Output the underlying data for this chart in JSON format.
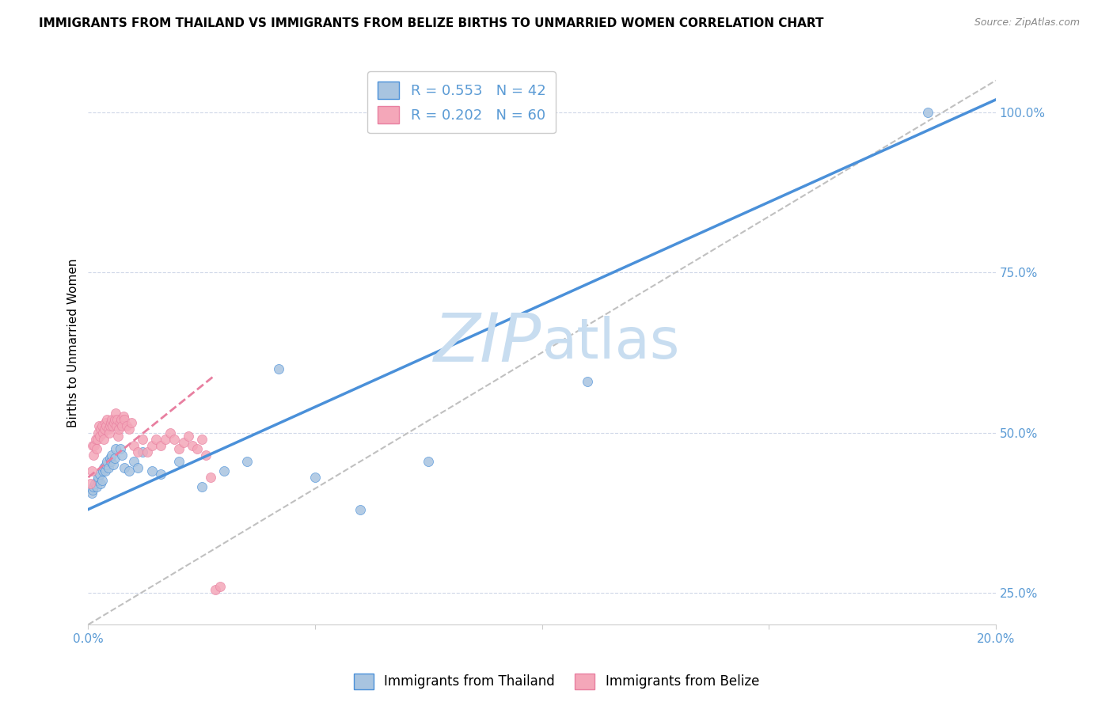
{
  "title": "IMMIGRANTS FROM THAILAND VS IMMIGRANTS FROM BELIZE BIRTHS TO UNMARRIED WOMEN CORRELATION CHART",
  "source": "Source: ZipAtlas.com",
  "ylabel_left": "Births to Unmarried Women",
  "legend_labels": [
    "Immigrants from Thailand",
    "Immigrants from Belize"
  ],
  "r_thailand": 0.553,
  "n_thailand": 42,
  "r_belize": 0.202,
  "n_belize": 60,
  "color_thailand": "#a8c4e0",
  "color_belize": "#f4a7b9",
  "color_regression_thailand": "#4a90d9",
  "color_regression_belize": "#e87fa0",
  "color_right_axis": "#5b9bd5",
  "xlim": [
    0.0,
    0.2
  ],
  "ylim": [
    0.2,
    1.08
  ],
  "yticks_right": [
    0.25,
    0.5,
    0.75,
    1.0
  ],
  "ytick_labels_right": [
    "25.0%",
    "50.0%",
    "75.0%",
    "100.0%"
  ],
  "watermark_zip": "ZIP",
  "watermark_atlas": "atlas",
  "watermark_color": "#c8ddf0",
  "thailand_x": [
    0.0008,
    0.001,
    0.0012,
    0.0015,
    0.0018,
    0.002,
    0.0022,
    0.0025,
    0.0028,
    0.003,
    0.0032,
    0.0035,
    0.0038,
    0.004,
    0.0042,
    0.0045,
    0.0048,
    0.005,
    0.0052,
    0.0055,
    0.0058,
    0.006,
    0.0065,
    0.007,
    0.0075,
    0.008,
    0.009,
    0.01,
    0.011,
    0.012,
    0.014,
    0.016,
    0.02,
    0.025,
    0.03,
    0.035,
    0.042,
    0.05,
    0.06,
    0.075,
    0.11,
    0.185
  ],
  "thailand_y": [
    0.405,
    0.41,
    0.415,
    0.42,
    0.415,
    0.425,
    0.43,
    0.435,
    0.42,
    0.425,
    0.44,
    0.445,
    0.44,
    0.45,
    0.455,
    0.445,
    0.46,
    0.455,
    0.465,
    0.45,
    0.46,
    0.475,
    0.51,
    0.475,
    0.465,
    0.445,
    0.44,
    0.455,
    0.445,
    0.47,
    0.44,
    0.435,
    0.455,
    0.415,
    0.44,
    0.455,
    0.6,
    0.43,
    0.38,
    0.455,
    0.58,
    1.0
  ],
  "belize_x": [
    0.0005,
    0.0008,
    0.001,
    0.0012,
    0.0014,
    0.0016,
    0.0018,
    0.002,
    0.0022,
    0.0024,
    0.0026,
    0.0028,
    0.003,
    0.0032,
    0.0034,
    0.0036,
    0.0038,
    0.004,
    0.0042,
    0.0044,
    0.0046,
    0.0048,
    0.005,
    0.0052,
    0.0054,
    0.0056,
    0.0058,
    0.006,
    0.0062,
    0.0064,
    0.0066,
    0.0068,
    0.007,
    0.0072,
    0.0075,
    0.0078,
    0.008,
    0.0085,
    0.009,
    0.0095,
    0.01,
    0.011,
    0.012,
    0.013,
    0.014,
    0.015,
    0.016,
    0.017,
    0.018,
    0.019,
    0.02,
    0.021,
    0.022,
    0.023,
    0.024,
    0.025,
    0.026,
    0.027,
    0.028,
    0.029
  ],
  "belize_y": [
    0.42,
    0.44,
    0.48,
    0.465,
    0.48,
    0.49,
    0.475,
    0.49,
    0.5,
    0.51,
    0.495,
    0.505,
    0.51,
    0.5,
    0.49,
    0.505,
    0.515,
    0.51,
    0.52,
    0.505,
    0.5,
    0.51,
    0.515,
    0.52,
    0.51,
    0.515,
    0.52,
    0.53,
    0.51,
    0.52,
    0.495,
    0.505,
    0.515,
    0.52,
    0.51,
    0.525,
    0.52,
    0.51,
    0.505,
    0.515,
    0.48,
    0.47,
    0.49,
    0.47,
    0.48,
    0.49,
    0.48,
    0.49,
    0.5,
    0.49,
    0.475,
    0.485,
    0.495,
    0.48,
    0.475,
    0.49,
    0.465,
    0.43,
    0.255,
    0.26
  ],
  "regression_thailand_x0": 0.0,
  "regression_thailand_y0": 0.38,
  "regression_thailand_x1": 0.2,
  "regression_thailand_y1": 1.02,
  "regression_belize_x0": 0.0,
  "regression_belize_y0": 0.43,
  "regression_belize_x1": 0.028,
  "regression_belize_y1": 0.59,
  "ref_line_x0": 0.0,
  "ref_line_y0": 0.2,
  "ref_line_x1": 0.2,
  "ref_line_y1": 1.05
}
